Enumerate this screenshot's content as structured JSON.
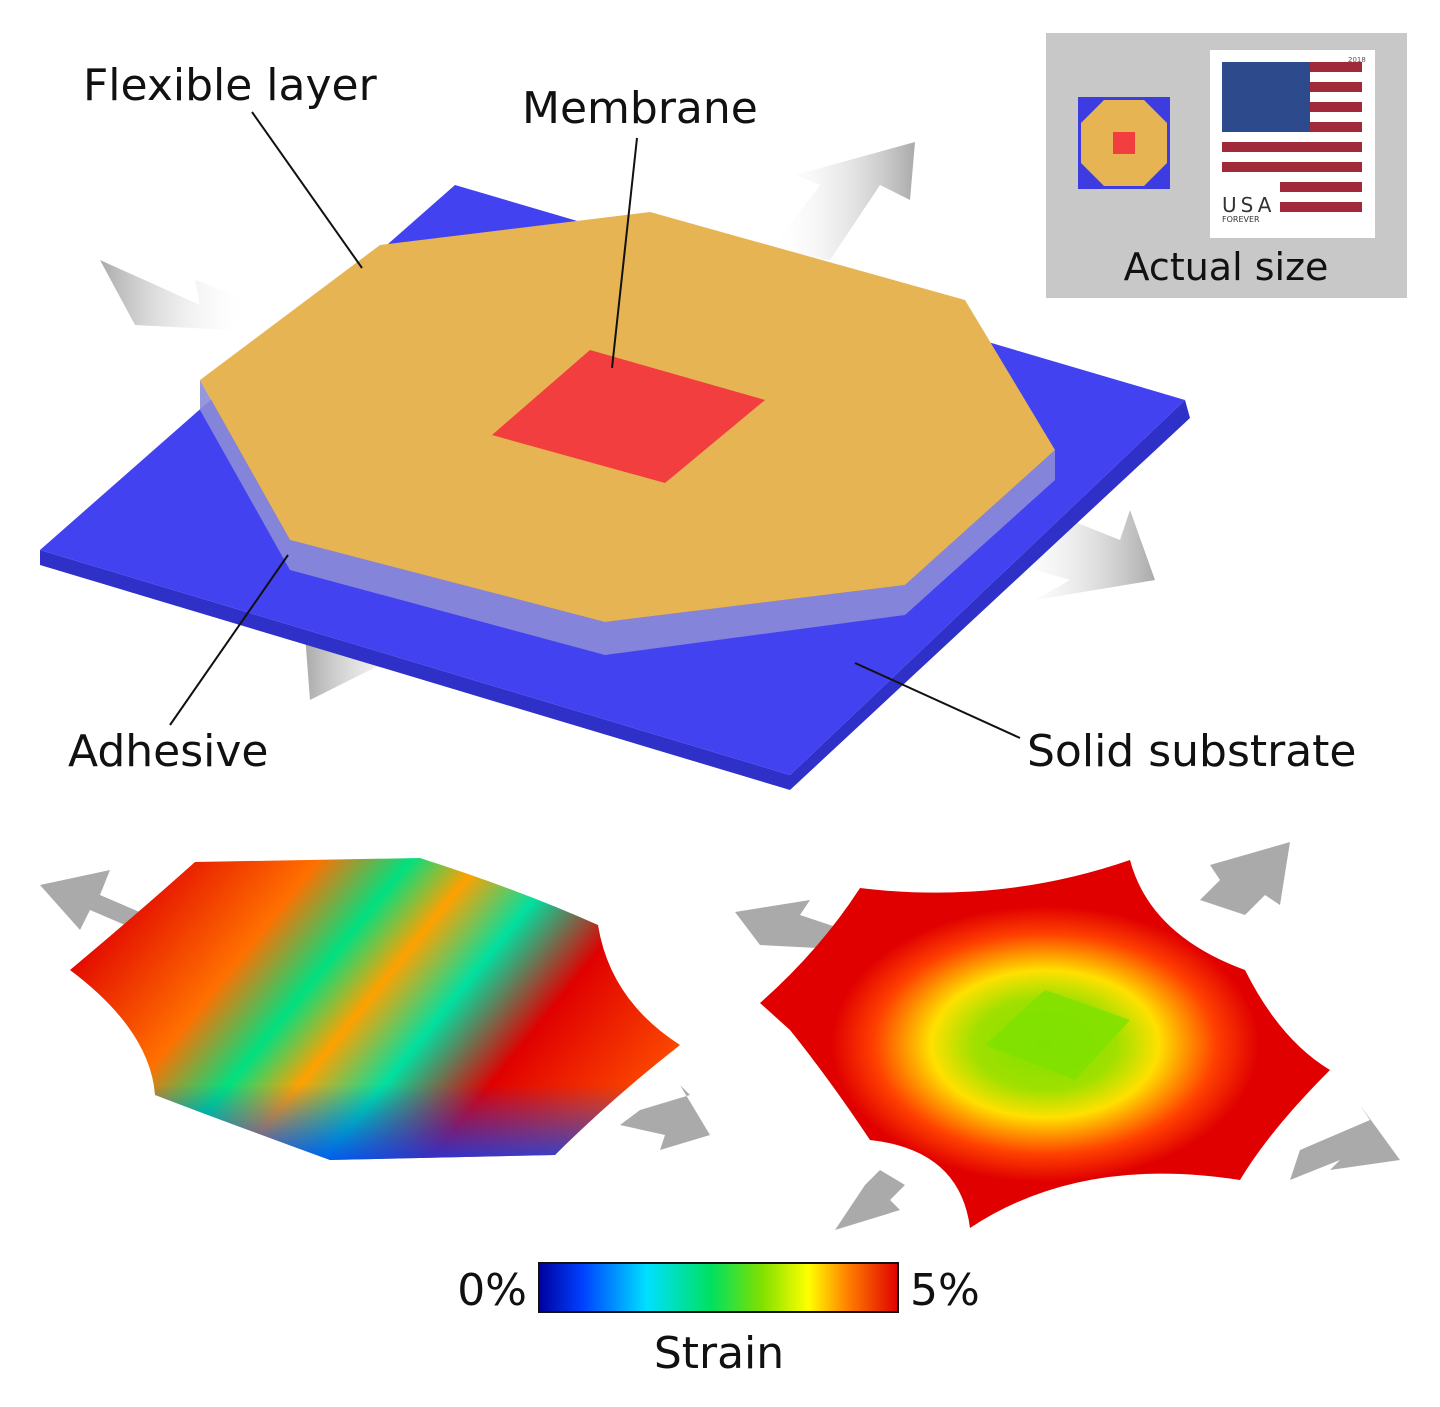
{
  "labels": {
    "flexible_layer": "Flexible layer",
    "membrane": "Membrane",
    "adhesive": "Adhesive",
    "solid_substrate": "Solid substrate"
  },
  "inset": {
    "caption": "Actual size",
    "stamp_country": "USA",
    "stamp_type": "FOREVER",
    "stamp_year": "2018"
  },
  "colorbar": {
    "min_label": "0%",
    "max_label": "5%",
    "title": "Strain"
  }
}
